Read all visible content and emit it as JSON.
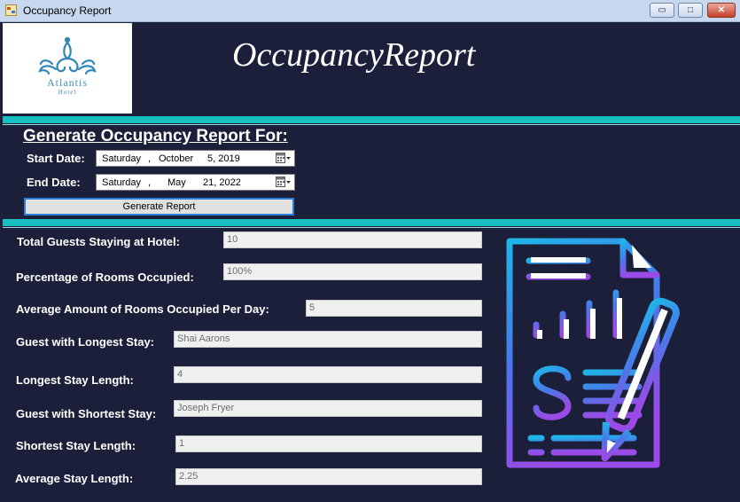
{
  "window": {
    "title": "Occupancy Report",
    "controls": {
      "minimize": "▭",
      "maximize": "□",
      "close": "✕"
    }
  },
  "logo": {
    "name": "Atlantis",
    "sub": "Hotel"
  },
  "header": {
    "title": "OccupancyReport"
  },
  "generate": {
    "heading": "Generate Occupancy Report For:",
    "start_label": "Start Date:",
    "start": {
      "day": "Saturday",
      "sep": ",",
      "month": "October",
      "date": "5, 2019"
    },
    "end_label": "End Date:",
    "end": {
      "day": "Saturday",
      "sep": ",",
      "month": "May",
      "date": "21, 2022"
    },
    "button": "Generate Report"
  },
  "stats": [
    {
      "label": "Total Guests Staying at Hotel:",
      "value": "10"
    },
    {
      "label": "Percentage of Rooms Occupied:",
      "value": "100%"
    },
    {
      "label": "Average Amount of Rooms Occupied Per Day:",
      "value": "5"
    },
    {
      "label": "Guest with Longest Stay:",
      "value": "Shai Aarons"
    },
    {
      "label": "Longest Stay Length:",
      "value": "4"
    },
    {
      "label": "Guest with Shortest Stay:",
      "value": "Joseph Fryer"
    },
    {
      "label": "Shortest Stay Length:",
      "value": "1"
    },
    {
      "label": "Average Stay Length:",
      "value": "2.25"
    }
  ],
  "colors": {
    "background": "#1b1f3a",
    "accent": "#17bfc0",
    "button_border": "#2d7fd6"
  },
  "icons": {
    "app": "form-icon",
    "calendar": "calendar-icon",
    "report": "report-document-icon"
  }
}
